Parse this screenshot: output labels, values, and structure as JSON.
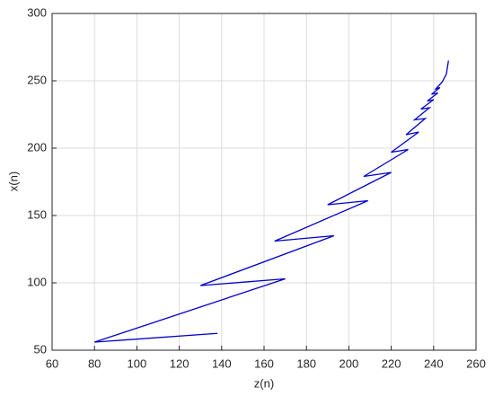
{
  "chart_data": {
    "type": "line",
    "xlabel": "z(n)",
    "ylabel": "x(n)",
    "x": [
      138,
      80,
      170,
      130,
      193,
      165,
      209,
      190,
      220,
      207,
      228,
      220,
      233,
      227,
      236,
      231,
      238,
      234,
      240,
      237,
      242,
      239,
      243,
      241,
      244,
      246,
      247
    ],
    "series": [
      {
        "color": "#0000cc",
        "values": [
          62.5,
          56,
          103,
          98,
          135,
          131,
          161,
          158,
          182,
          179,
          199,
          197,
          212,
          210,
          222,
          221,
          230,
          229,
          236,
          235,
          241,
          240,
          245,
          244,
          249,
          255,
          265
        ]
      }
    ],
    "xlim": [
      60,
      260
    ],
    "xticks": [
      60,
      80,
      100,
      120,
      140,
      160,
      180,
      200,
      220,
      240,
      260
    ],
    "ylim": [
      50,
      300
    ],
    "yticks": [
      50,
      100,
      150,
      200,
      250,
      300
    ],
    "grid": true
  }
}
